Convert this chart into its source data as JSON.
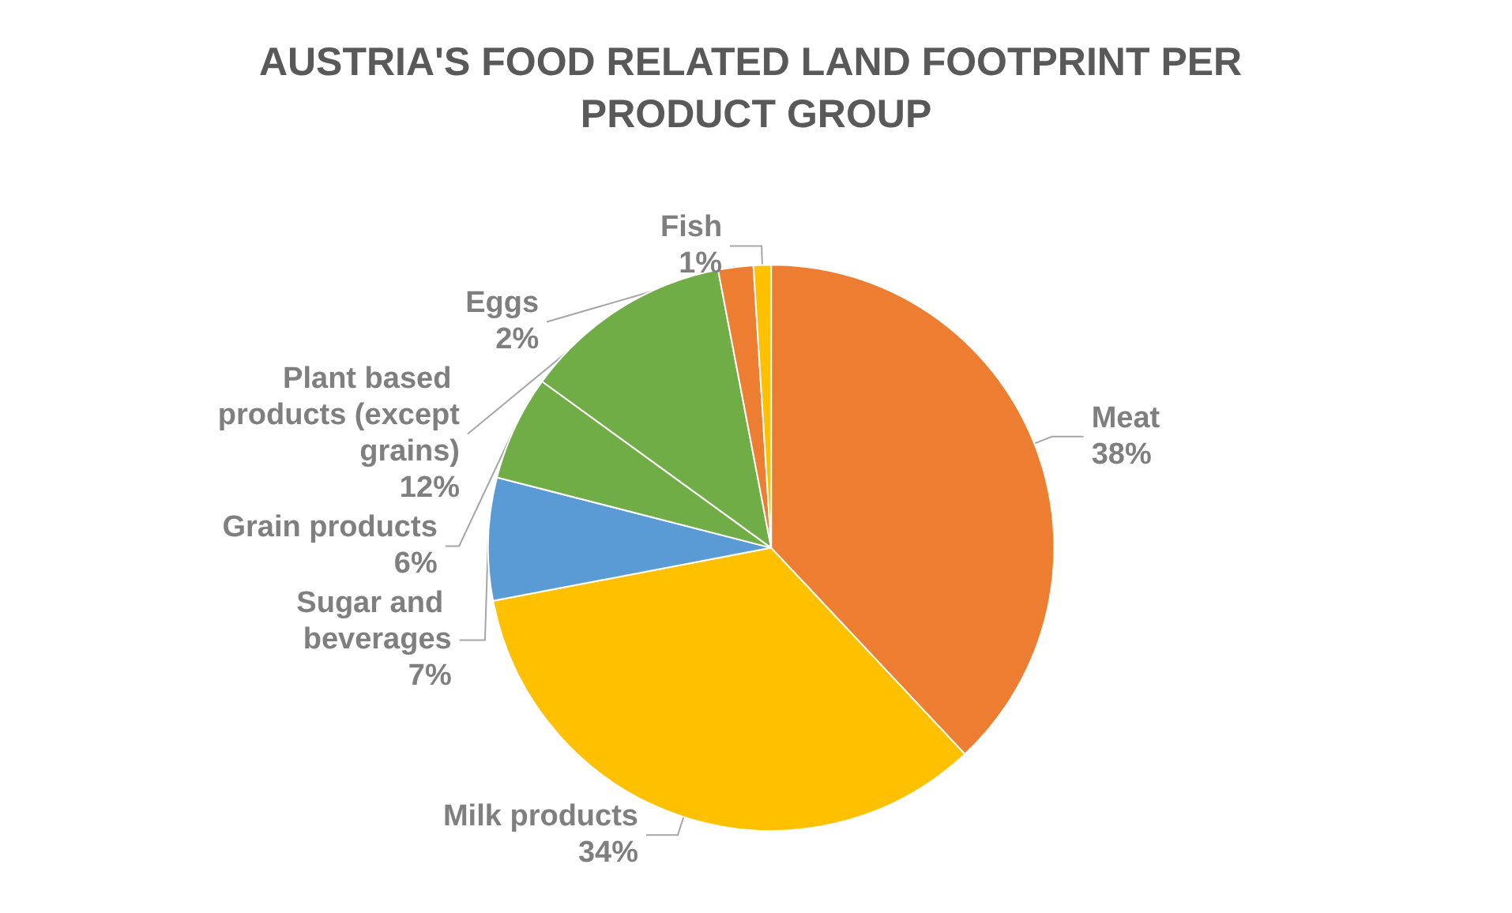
{
  "chart_data": {
    "type": "pie",
    "title": "AUSTRIA'S FOOD RELATED LAND FOOTPRINT PER PRODUCT GROUP",
    "categories": [
      "Meat",
      "Milk products",
      "Sugar and beverages",
      "Grain products",
      "Plant based products (except grains)",
      "Eggs",
      "Fish"
    ],
    "values": [
      38,
      34,
      7,
      6,
      12,
      2,
      1
    ],
    "value_labels": [
      "38%",
      "34%",
      "7%",
      "6%",
      "12%",
      "2%",
      "1%"
    ],
    "colors": [
      "#ed7d31",
      "#ffc000",
      "#5b9bd5",
      "#70ad47",
      "#70ad47",
      "#ed7d31",
      "#ffc000"
    ],
    "legend": false
  }
}
